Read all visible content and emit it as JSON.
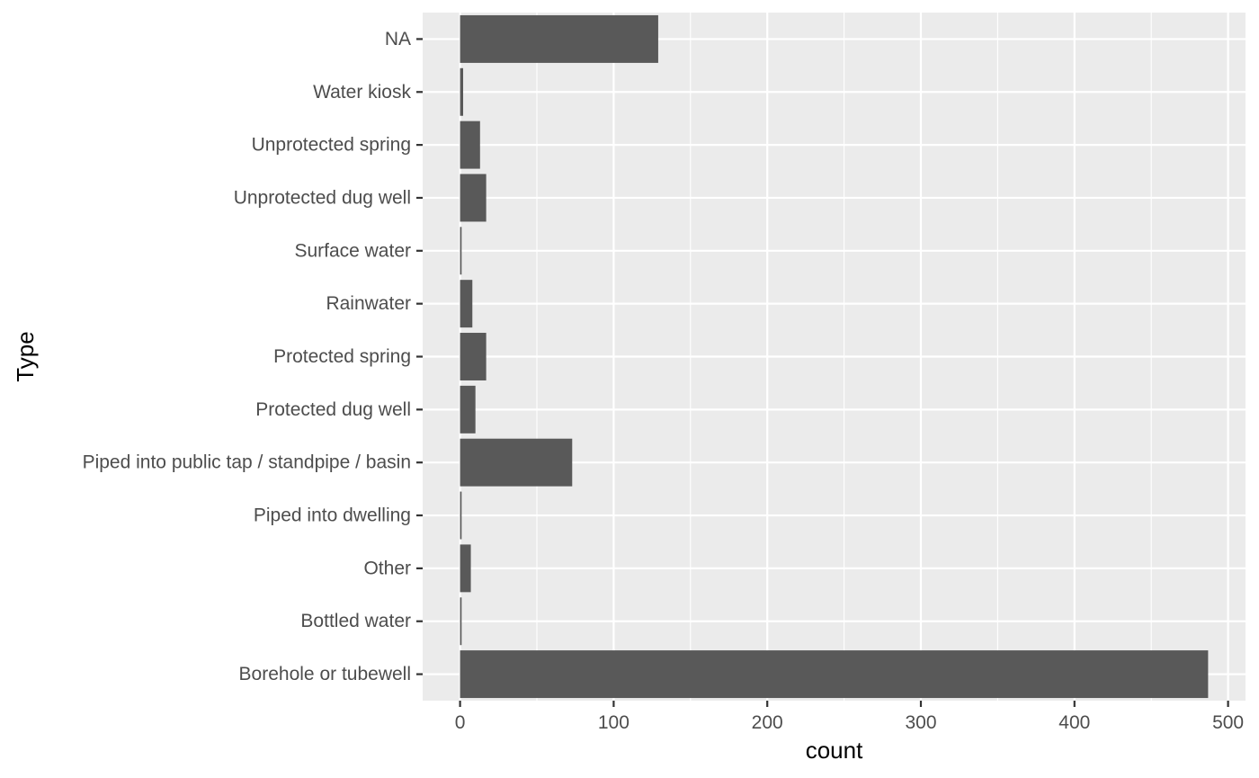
{
  "chart_data": {
    "type": "bar",
    "orientation": "horizontal",
    "title": "",
    "xlabel": "count",
    "ylabel": "Type",
    "categories": [
      "Borehole or tubewell",
      "Bottled water",
      "Other",
      "Piped into dwelling",
      "Piped into public tap / standpipe / basin",
      "Protected dug well",
      "Protected spring",
      "Rainwater",
      "Surface water",
      "Unprotected dug well",
      "Unprotected spring",
      "Water kiosk",
      "NA"
    ],
    "values": [
      487,
      1,
      7,
      1,
      73,
      10,
      17,
      8,
      1,
      17,
      13,
      2,
      129
    ],
    "xlim": [
      -24.35,
      511.35
    ],
    "x_ticks": [
      0,
      100,
      200,
      300,
      400,
      500
    ],
    "x_tick_labels": [
      "0",
      "100",
      "200",
      "300",
      "400",
      "500"
    ],
    "grid": true,
    "legend": "none",
    "colors": {
      "panel_background": "#ebebeb",
      "grid": "#ffffff",
      "bar_fill": "#595959",
      "tick_label": "#4d4d4d"
    }
  }
}
